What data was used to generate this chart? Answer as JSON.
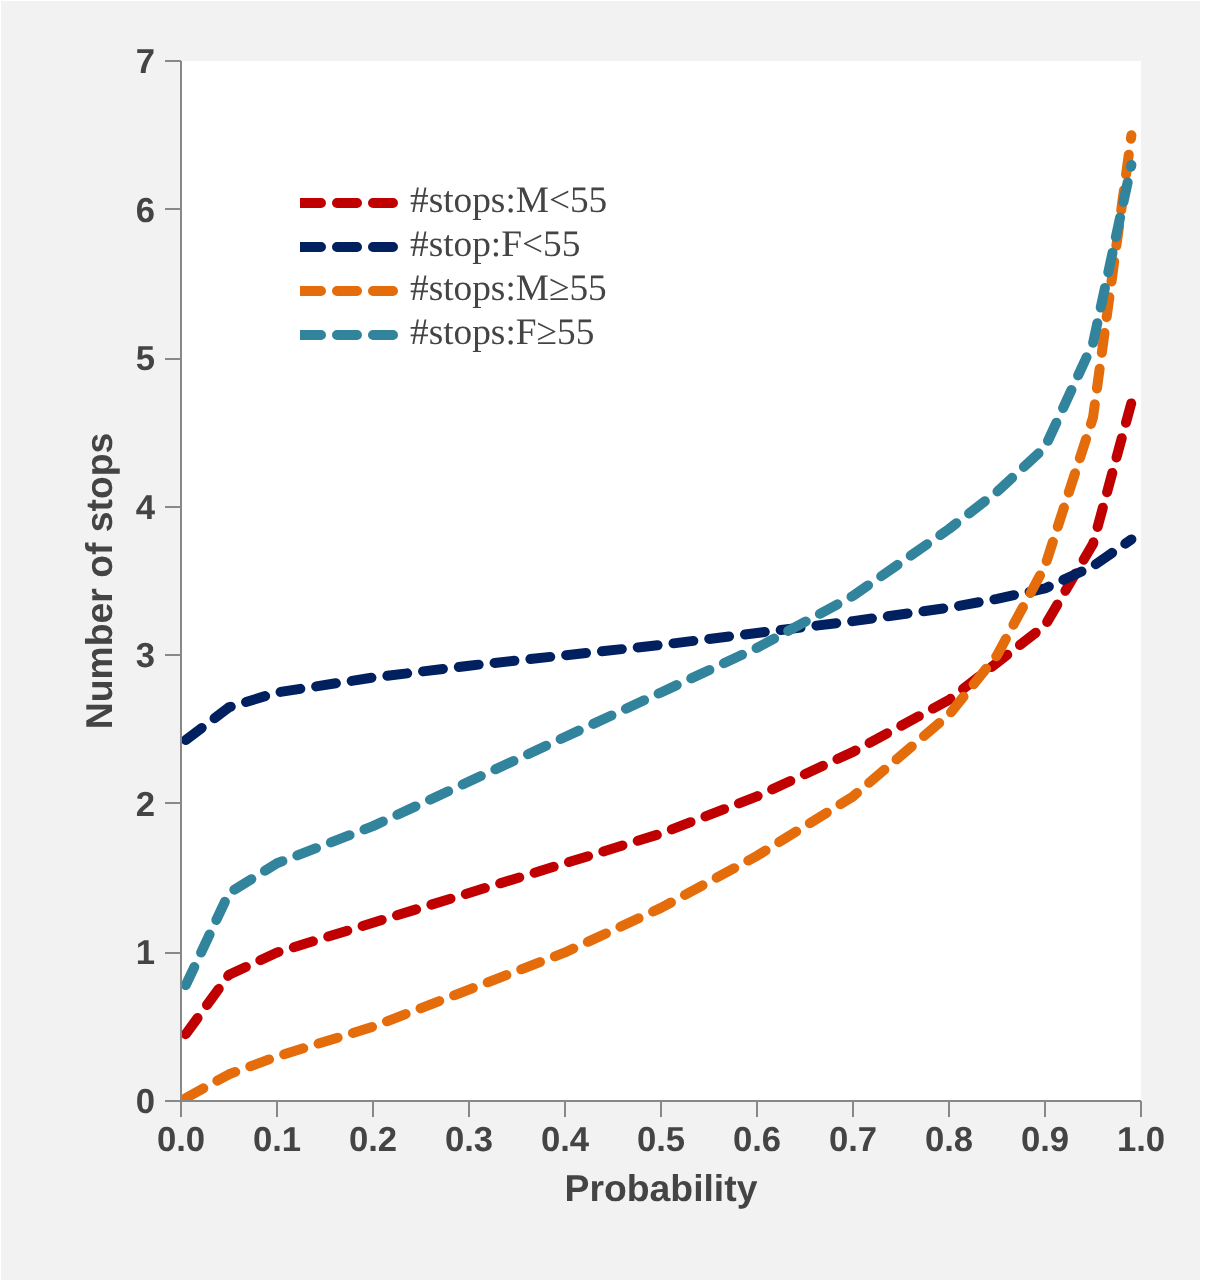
{
  "chart_data": {
    "type": "line",
    "xlabel": "Probability",
    "ylabel": "Number of stops",
    "xlim": [
      0,
      1
    ],
    "xticks": [
      {
        "value": 0,
        "label": "0.0"
      },
      0.1,
      0.2,
      0.3,
      0.4,
      0.5,
      0.6,
      0.7,
      0.8,
      0.9,
      {
        "value": 1,
        "label": "1.0"
      }
    ],
    "ylim": [
      0,
      7
    ],
    "yticks": [
      0,
      1,
      2,
      3,
      4,
      5,
      6,
      7
    ],
    "x": [
      0.005,
      0.05,
      0.1,
      0.2,
      0.3,
      0.4,
      0.5,
      0.6,
      0.7,
      0.8,
      0.85,
      0.9,
      0.95,
      0.99
    ],
    "series": [
      {
        "name": "#stops:M<55",
        "color": "#c00000",
        "values": [
          0.45,
          0.85,
          1.0,
          1.2,
          1.4,
          1.6,
          1.8,
          2.05,
          2.35,
          2.7,
          2.95,
          3.2,
          3.75,
          4.7
        ]
      },
      {
        "name": "#stop:F<55",
        "color": "#002060",
        "values": [
          2.43,
          2.65,
          2.75,
          2.85,
          2.93,
          3.0,
          3.07,
          3.15,
          3.23,
          3.32,
          3.38,
          3.45,
          3.6,
          3.78
        ]
      },
      {
        "name": "#stops:M≥55",
        "color": "#e46c0a",
        "values": [
          0.02,
          0.18,
          0.3,
          0.5,
          0.75,
          1.0,
          1.3,
          1.65,
          2.05,
          2.6,
          3.0,
          3.6,
          4.6,
          6.5
        ]
      },
      {
        "name": "#stops:F≥55",
        "color": "#31849b",
        "values": [
          0.78,
          1.4,
          1.6,
          1.85,
          2.15,
          2.45,
          2.75,
          3.05,
          3.4,
          3.85,
          4.1,
          4.4,
          5.1,
          6.3
        ]
      }
    ],
    "line_style": "dashed",
    "marker": "none",
    "grid": false,
    "legend": "top left"
  }
}
